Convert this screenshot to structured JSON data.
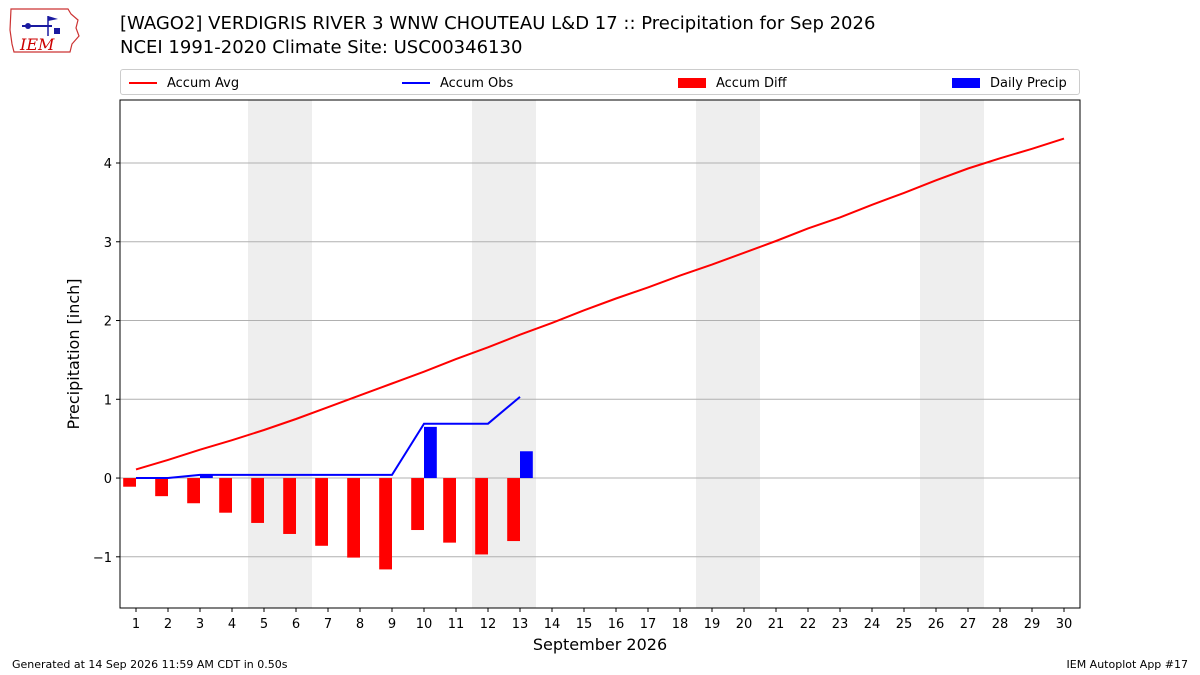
{
  "header": {
    "title_line1": "[WAGO2] VERDIGRIS RIVER 3 WNW CHOUTEAU L&D 17 :: Precipitation for Sep 2026",
    "title_line2": "NCEI 1991-2020 Climate Site: USC00346130"
  },
  "logo": {
    "text": "IEM",
    "color": "#cc0000"
  },
  "footer": {
    "left": "Generated at 14 Sep 2026 11:59 AM CDT in 0.50s",
    "right": "IEM Autoplot App #17"
  },
  "chart_data": {
    "type": "bar",
    "xlabel": "September 2026",
    "ylabel": "Precipitation [inch]",
    "xlim": [
      0.5,
      30.5
    ],
    "ylim": [
      -1.65,
      4.8
    ],
    "yticks": [
      -1,
      0,
      1,
      2,
      3,
      4
    ],
    "ytick_labels": [
      "−1",
      "0",
      "1",
      "2",
      "3",
      "4"
    ],
    "xticks": [
      1,
      2,
      3,
      4,
      5,
      6,
      7,
      8,
      9,
      10,
      11,
      12,
      13,
      14,
      15,
      16,
      17,
      18,
      19,
      20,
      21,
      22,
      23,
      24,
      25,
      26,
      27,
      28,
      29,
      30
    ],
    "grid": "horizontal",
    "legend_position": "top",
    "weekend_shading": [
      [
        4.5,
        6.5
      ],
      [
        11.5,
        13.5
      ],
      [
        18.5,
        20.5
      ],
      [
        25.5,
        27.5
      ]
    ],
    "legend": [
      {
        "label": "Accum Avg",
        "kind": "line",
        "color": "#ff0000"
      },
      {
        "label": "Accum Obs",
        "kind": "line",
        "color": "#0000ff"
      },
      {
        "label": "Accum Diff",
        "kind": "bar",
        "color": "#ff0000"
      },
      {
        "label": "Daily Precip",
        "kind": "bar",
        "color": "#0000ff"
      }
    ],
    "series": [
      {
        "name": "Accum Avg",
        "kind": "line",
        "color": "#ff0000",
        "x": [
          1,
          2,
          3,
          4,
          5,
          6,
          7,
          8,
          9,
          10,
          11,
          12,
          13,
          14,
          15,
          16,
          17,
          18,
          19,
          20,
          21,
          22,
          23,
          24,
          25,
          26,
          27,
          28,
          29,
          30
        ],
        "values": [
          0.11,
          0.23,
          0.36,
          0.48,
          0.61,
          0.75,
          0.9,
          1.05,
          1.2,
          1.35,
          1.51,
          1.66,
          1.82,
          1.97,
          2.13,
          2.28,
          2.42,
          2.57,
          2.71,
          2.86,
          3.01,
          3.17,
          3.31,
          3.47,
          3.62,
          3.78,
          3.93,
          4.06,
          4.18,
          4.31
        ]
      },
      {
        "name": "Accum Obs",
        "kind": "line",
        "color": "#0000ff",
        "x": [
          1,
          2,
          3,
          4,
          5,
          6,
          7,
          8,
          9,
          10,
          11,
          12,
          13
        ],
        "values": [
          0.0,
          0.0,
          0.04,
          0.04,
          0.04,
          0.04,
          0.04,
          0.04,
          0.04,
          0.69,
          0.69,
          0.69,
          1.03
        ]
      },
      {
        "name": "Accum Diff",
        "kind": "bar",
        "color": "#ff0000",
        "x": [
          1,
          2,
          3,
          4,
          5,
          6,
          7,
          8,
          9,
          10,
          11,
          12,
          13
        ],
        "values": [
          -0.11,
          -0.23,
          -0.32,
          -0.44,
          -0.57,
          -0.71,
          -0.86,
          -1.01,
          -1.16,
          -0.66,
          -0.82,
          -0.97,
          -0.8
        ]
      },
      {
        "name": "Daily Precip",
        "kind": "bar",
        "color": "#0000ff",
        "x": [
          1,
          2,
          3,
          4,
          5,
          6,
          7,
          8,
          9,
          10,
          11,
          12,
          13
        ],
        "values": [
          0.0,
          0.0,
          0.04,
          0.0,
          0.0,
          0.0,
          0.0,
          0.0,
          0.0,
          0.65,
          0.0,
          0.0,
          0.34
        ]
      }
    ]
  }
}
